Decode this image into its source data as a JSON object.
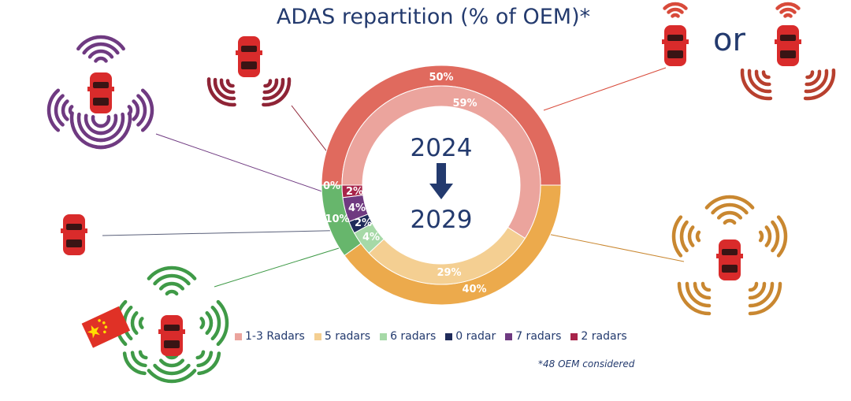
{
  "title": "ADAS repartition (% of OEM)*",
  "connector_word": "or",
  "footnote": "*48 OEM considered",
  "center": {
    "year_from": "2024",
    "year_to": "2029"
  },
  "colors": {
    "r13_outer": "#e06a5e",
    "r13_inner": "#eba49d",
    "r5_outer": "#ecaa4c",
    "r5_inner": "#f4cf92",
    "r6_outer": "#67b66c",
    "r6_inner": "#a6d9a7",
    "r0": "#1f2b5a",
    "r7": "#6f3a81",
    "r2": "#a8244a",
    "text": "#233a6e",
    "car": "#d92b2b"
  },
  "chart_data": {
    "type": "pie",
    "subtype": "double-donut",
    "title": "ADAS repartition (% of OEM)*",
    "categories": [
      "1-3 Radars",
      "5 radars",
      "6 radars",
      "0 radar",
      "7 radars",
      "2 radars"
    ],
    "series": [
      {
        "name": "2029 (outer ring)",
        "values": [
          50,
          40,
          10,
          0,
          0,
          0
        ],
        "labels": [
          "50%",
          "40%",
          "10%",
          "",
          "",
          "0%"
        ]
      },
      {
        "name": "2024 (inner ring)",
        "values": [
          59,
          29,
          4,
          2,
          4,
          2
        ],
        "labels": [
          "59%",
          "29%",
          "4%",
          "2%",
          "4%",
          "2%"
        ]
      }
    ],
    "legend": [
      "1-3 Radars",
      "5 radars",
      "6 radars",
      "0 radar",
      "7 radars",
      "2 radars"
    ],
    "legend_position": "bottom"
  },
  "legend_items": [
    {
      "label": "1-3 Radars",
      "color": "#eba49d"
    },
    {
      "label": "5 radars",
      "color": "#f4cf92"
    },
    {
      "label": "6 radars",
      "color": "#a6d9a7"
    },
    {
      "label": "0 radar",
      "color": "#1f2b5a"
    },
    {
      "label": "7 radars",
      "color": "#6f3a81"
    },
    {
      "label": "2 radars",
      "color": "#a8244a"
    }
  ],
  "illustration_colors": {
    "purple": "#6f3a81",
    "maroon": "#8f2436",
    "slate": "#5a607a",
    "green": "#3f9a47",
    "orange": "#c98730",
    "red": "#d84a3a",
    "brick": "#b8402e"
  }
}
